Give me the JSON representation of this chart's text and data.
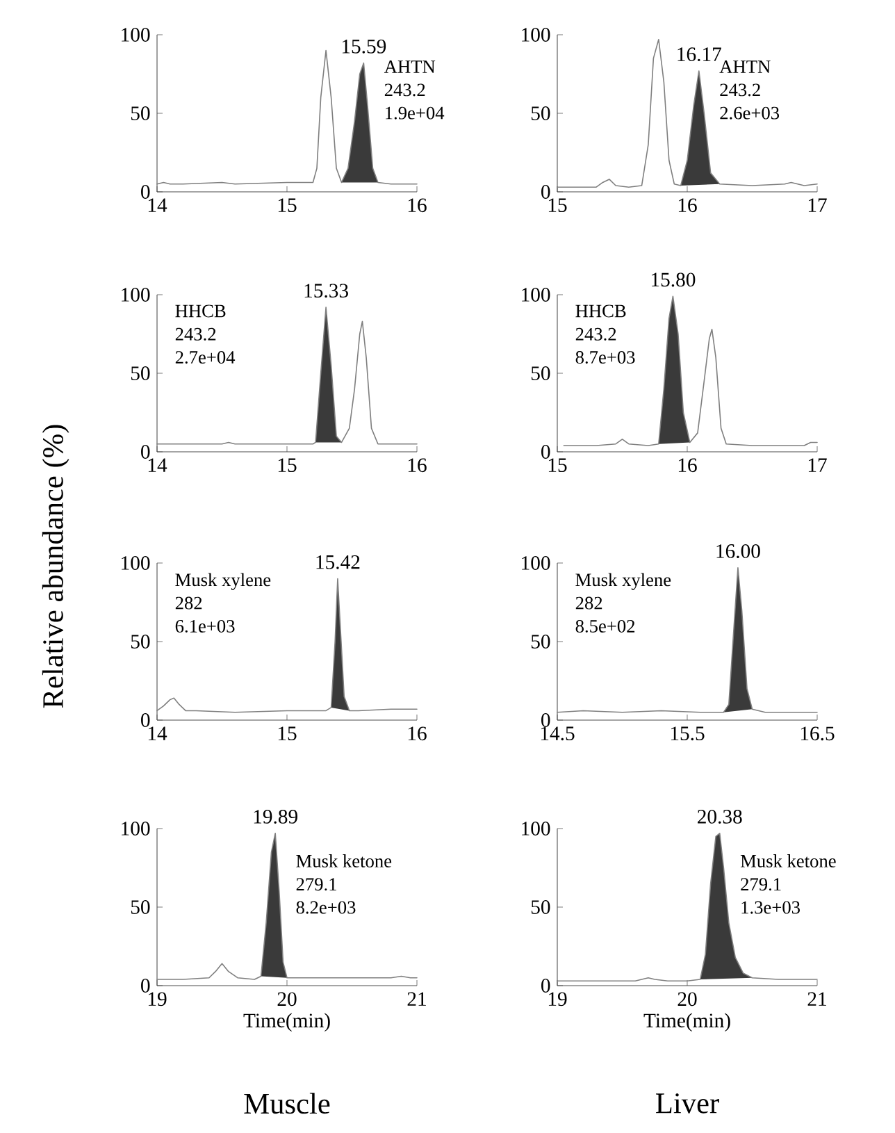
{
  "chart_data": [
    {
      "type": "line",
      "xlim": [
        14,
        16
      ],
      "ylim": [
        0,
        100
      ],
      "xticks": [
        14,
        15,
        16
      ],
      "yticks": [
        0,
        50,
        100
      ],
      "series": [
        {
          "type": "area",
          "color": "#3a3a3a",
          "x": [
            15.42,
            15.47,
            15.52,
            15.56,
            15.59,
            15.62,
            15.66,
            15.7
          ],
          "values": [
            6,
            15,
            45,
            75,
            82,
            55,
            15,
            6
          ]
        },
        {
          "type": "line",
          "color": "#7f7f7f",
          "x": [
            14.0,
            14.05,
            14.1,
            14.2,
            14.5,
            14.6,
            15.0,
            15.2,
            15.23,
            15.26,
            15.3,
            15.34,
            15.38,
            15.42,
            15.47,
            15.52,
            15.56,
            15.59,
            15.62,
            15.66,
            15.7,
            15.8,
            16.0
          ],
          "values": [
            5,
            6,
            5,
            5,
            6,
            5,
            6,
            6,
            15,
            60,
            90,
            60,
            15,
            6,
            15,
            45,
            75,
            82,
            55,
            15,
            6,
            5,
            5
          ]
        }
      ],
      "annotations": [
        {
          "text": "15.59",
          "x": 15.59,
          "y": 82
        },
        "AHTN",
        "243.2",
        "1.9e+04"
      ]
    },
    {
      "type": "line",
      "xlim": [
        15,
        17
      ],
      "ylim": [
        0,
        100
      ],
      "xticks": [
        15,
        16,
        17
      ],
      "yticks": [
        0,
        50,
        100
      ],
      "series": [
        {
          "type": "area",
          "color": "#3a3a3a",
          "x": [
            15.95,
            16.0,
            16.05,
            16.09,
            16.13,
            16.18,
            16.25
          ],
          "values": [
            4,
            20,
            55,
            77,
            50,
            12,
            5
          ]
        },
        {
          "type": "line",
          "color": "#7f7f7f",
          "x": [
            15.0,
            15.3,
            15.35,
            15.4,
            15.45,
            15.55,
            15.65,
            15.7,
            15.74,
            15.78,
            15.82,
            15.86,
            15.9,
            15.95,
            16.0,
            16.05,
            16.09,
            16.13,
            16.18,
            16.25,
            16.5,
            16.75,
            16.8,
            16.85,
            16.9,
            17.0
          ],
          "values": [
            3,
            3,
            6,
            8,
            4,
            3,
            4,
            30,
            85,
            97,
            70,
            20,
            5,
            4,
            20,
            55,
            77,
            50,
            12,
            5,
            4,
            5,
            6,
            5,
            4,
            5
          ]
        }
      ],
      "annotations": [
        {
          "text": "16.17",
          "x": 16.09,
          "y": 77
        },
        "AHTN",
        "243.2",
        "2.6e+03"
      ]
    },
    {
      "type": "line",
      "xlim": [
        14,
        16
      ],
      "ylim": [
        0,
        100
      ],
      "xticks": [
        14,
        15,
        16
      ],
      "yticks": [
        0,
        50,
        100
      ],
      "series": [
        {
          "type": "area",
          "color": "#3a3a3a",
          "x": [
            15.22,
            15.26,
            15.3,
            15.34,
            15.38,
            15.42
          ],
          "values": [
            6,
            50,
            92,
            55,
            10,
            6
          ]
        },
        {
          "type": "line",
          "color": "#7f7f7f",
          "x": [
            14.0,
            14.2,
            14.5,
            14.55,
            14.6,
            15.0,
            15.2,
            15.22,
            15.26,
            15.3,
            15.34,
            15.38,
            15.42,
            15.48,
            15.52,
            15.56,
            15.58,
            15.61,
            15.65,
            15.7,
            15.8,
            15.9,
            16.0
          ],
          "values": [
            5,
            5,
            5,
            6,
            5,
            5,
            5,
            6,
            50,
            92,
            55,
            10,
            6,
            15,
            40,
            75,
            83,
            60,
            15,
            5,
            5,
            5,
            5
          ]
        }
      ],
      "annotations": [
        {
          "text": "15.33",
          "x": 15.3,
          "y": 92
        },
        "HHCB",
        "243.2",
        "2.7e+04"
      ]
    },
    {
      "type": "line",
      "xlim": [
        15,
        17
      ],
      "ylim": [
        0,
        100
      ],
      "xticks": [
        15,
        16,
        17
      ],
      "yticks": [
        0,
        50,
        100
      ],
      "series": [
        {
          "type": "area",
          "color": "#3a3a3a",
          "x": [
            15.78,
            15.82,
            15.86,
            15.89,
            15.93,
            15.97,
            16.02
          ],
          "values": [
            5,
            40,
            85,
            99,
            75,
            25,
            6
          ]
        },
        {
          "type": "line",
          "color": "#7f7f7f",
          "x": [
            15.05,
            15.3,
            15.45,
            15.5,
            15.55,
            15.7,
            15.78,
            15.82,
            15.86,
            15.89,
            15.93,
            15.97,
            16.02,
            16.08,
            16.13,
            16.17,
            16.19,
            16.22,
            16.26,
            16.3,
            16.5,
            16.9,
            16.95,
            17.0
          ],
          "values": [
            4,
            4,
            5,
            8,
            5,
            4,
            5,
            40,
            85,
            99,
            75,
            25,
            6,
            12,
            45,
            72,
            78,
            60,
            15,
            5,
            4,
            4,
            6,
            6
          ]
        }
      ],
      "annotations": [
        {
          "text": "15.80",
          "x": 15.89,
          "y": 99
        },
        "HHCB",
        "243.2",
        "8.7e+03"
      ]
    },
    {
      "type": "line",
      "ylabel": "Relative abundance (%)",
      "xlim": [
        14,
        16
      ],
      "ylim": [
        0,
        100
      ],
      "xticks": [
        14,
        15,
        16
      ],
      "yticks": [
        0,
        50,
        100
      ],
      "series": [
        {
          "type": "area",
          "color": "#3a3a3a",
          "x": [
            15.34,
            15.37,
            15.39,
            15.41,
            15.44,
            15.48
          ],
          "values": [
            8,
            50,
            90,
            60,
            15,
            6
          ]
        },
        {
          "type": "line",
          "color": "#7f7f7f",
          "x": [
            14.0,
            14.05,
            14.1,
            14.13,
            14.17,
            14.22,
            14.3,
            14.6,
            15.0,
            15.3,
            15.34,
            15.37,
            15.39,
            15.41,
            15.44,
            15.48,
            15.55,
            15.8,
            16.0
          ],
          "values": [
            6,
            9,
            13,
            14,
            10,
            6,
            6,
            5,
            6,
            6,
            8,
            50,
            90,
            60,
            15,
            6,
            6,
            7,
            7
          ]
        }
      ],
      "annotations": [
        {
          "text": "15.42",
          "x": 15.39,
          "y": 90
        },
        "Musk xylene",
        "282",
        "6.1e+03"
      ]
    },
    {
      "type": "line",
      "xlim": [
        14.5,
        16.5
      ],
      "ylim": [
        0,
        100
      ],
      "xticks": [
        14.5,
        15.5,
        16.5
      ],
      "yticks": [
        0,
        50,
        100
      ],
      "series": [
        {
          "type": "area",
          "color": "#3a3a3a",
          "x": [
            15.78,
            15.82,
            15.86,
            15.89,
            15.92,
            15.96,
            16.0
          ],
          "values": [
            5,
            10,
            60,
            97,
            70,
            20,
            7
          ]
        },
        {
          "type": "line",
          "color": "#7f7f7f",
          "x": [
            14.5,
            14.7,
            15.0,
            15.3,
            15.6,
            15.78,
            15.82,
            15.86,
            15.89,
            15.92,
            15.96,
            16.0,
            16.1,
            16.3,
            16.5
          ],
          "values": [
            5,
            6,
            5,
            6,
            5,
            5,
            10,
            60,
            97,
            70,
            20,
            7,
            5,
            5,
            5
          ]
        }
      ],
      "annotations": [
        {
          "text": "16.00",
          "x": 15.89,
          "y": 97
        },
        "Musk xylene",
        "282",
        "8.5e+02"
      ]
    },
    {
      "type": "line",
      "title": "Muscle",
      "xlabel": "Time(min)",
      "xlim": [
        19,
        21
      ],
      "ylim": [
        0,
        100
      ],
      "xticks": [
        19,
        20,
        21
      ],
      "yticks": [
        0,
        50,
        100
      ],
      "series": [
        {
          "type": "area",
          "color": "#3a3a3a",
          "x": [
            19.8,
            19.84,
            19.88,
            19.91,
            19.94,
            19.97,
            20.0
          ],
          "values": [
            6,
            40,
            85,
            97,
            60,
            15,
            5
          ]
        },
        {
          "type": "line",
          "color": "#7f7f7f",
          "x": [
            19.0,
            19.2,
            19.4,
            19.45,
            19.5,
            19.55,
            19.62,
            19.75,
            19.8,
            19.84,
            19.88,
            19.91,
            19.94,
            19.97,
            20.0,
            20.2,
            20.5,
            20.8,
            20.88,
            20.95,
            21.0
          ],
          "values": [
            4,
            4,
            5,
            9,
            14,
            9,
            5,
            4,
            6,
            40,
            85,
            97,
            60,
            15,
            5,
            5,
            5,
            5,
            6,
            5,
            5
          ]
        }
      ],
      "annotations": [
        {
          "text": "19.89",
          "x": 19.91,
          "y": 97
        },
        "Musk ketone",
        "279.1",
        "8.2e+03"
      ]
    },
    {
      "type": "line",
      "title": "Liver",
      "xlabel": "Time(min)",
      "xlim": [
        19,
        21
      ],
      "ylim": [
        0,
        100
      ],
      "xticks": [
        19,
        20,
        21
      ],
      "yticks": [
        0,
        50,
        100
      ],
      "series": [
        {
          "type": "area",
          "color": "#3a3a3a",
          "x": [
            20.1,
            20.14,
            20.18,
            20.22,
            20.25,
            20.28,
            20.32,
            20.37,
            20.43,
            20.5
          ],
          "values": [
            4,
            20,
            65,
            95,
            97,
            75,
            40,
            18,
            8,
            5
          ]
        },
        {
          "type": "line",
          "color": "#7f7f7f",
          "x": [
            19.0,
            19.3,
            19.6,
            19.7,
            19.75,
            19.85,
            20.0,
            20.1,
            20.14,
            20.18,
            20.22,
            20.25,
            20.28,
            20.32,
            20.37,
            20.43,
            20.5,
            20.7,
            21.0
          ],
          "values": [
            3,
            3,
            3,
            5,
            4,
            3,
            3,
            4,
            20,
            65,
            95,
            97,
            75,
            40,
            18,
            8,
            5,
            4,
            4
          ]
        }
      ],
      "annotations": [
        {
          "text": "20.38",
          "x": 20.25,
          "y": 97
        },
        "Musk ketone",
        "279.1",
        "1.3e+03"
      ]
    }
  ]
}
